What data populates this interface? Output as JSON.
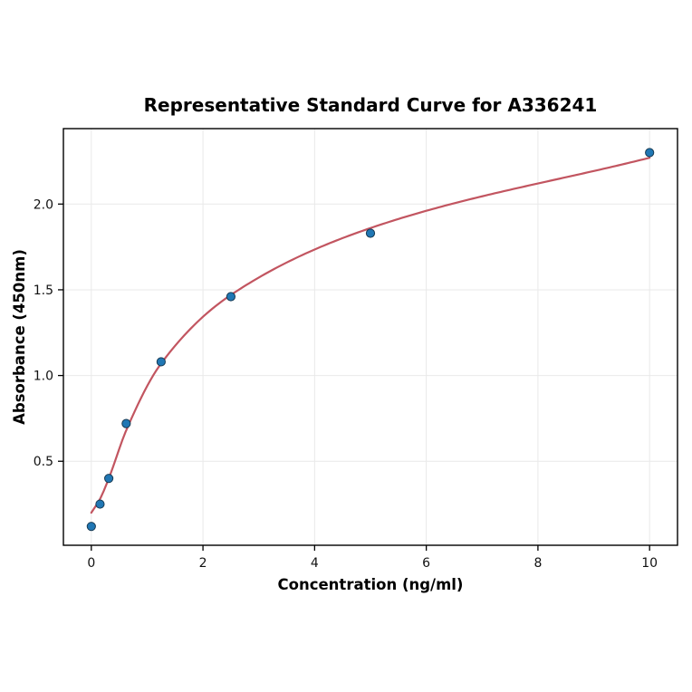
{
  "figure": {
    "background": "#ffffff"
  },
  "chart_data": {
    "type": "scatter",
    "title": "Representative Standard Curve for A336241",
    "xlabel": "Concentration (ng/ml)",
    "ylabel": "Absorbance (450nm)",
    "xlim": [
      -0.5,
      10.5
    ],
    "ylim": [
      0.01,
      2.44
    ],
    "xticks": [
      0,
      2,
      4,
      6,
      8,
      10
    ],
    "xtick_labels": [
      "0",
      "2",
      "4",
      "6",
      "8",
      "10"
    ],
    "yticks": [
      0.5,
      1.0,
      1.5,
      2.0
    ],
    "ytick_labels": [
      "0.5",
      "1.0",
      "1.5",
      "2.0"
    ],
    "grid": true,
    "legend": "none",
    "colors": {
      "marker_fill": "#2077b4",
      "marker_edge": "#173a52",
      "curve": "#c25560",
      "grid": "#e9e9e9",
      "frame": "#000000",
      "tick": "#000000"
    },
    "series": [
      {
        "name": "standards-scatter",
        "type": "scatter",
        "x": [
          0,
          0.156,
          0.313,
          0.625,
          1.25,
          2.5,
          5,
          10
        ],
        "y": [
          0.12,
          0.25,
          0.4,
          0.72,
          1.08,
          1.46,
          1.83,
          2.3
        ]
      },
      {
        "name": "fit-curve",
        "type": "line",
        "x": [
          0,
          0.156,
          0.313,
          0.625,
          1.25,
          2.5,
          5,
          10
        ],
        "y": [
          0.2,
          0.28,
          0.4,
          0.68,
          1.07,
          1.47,
          1.86,
          2.27
        ]
      }
    ]
  }
}
